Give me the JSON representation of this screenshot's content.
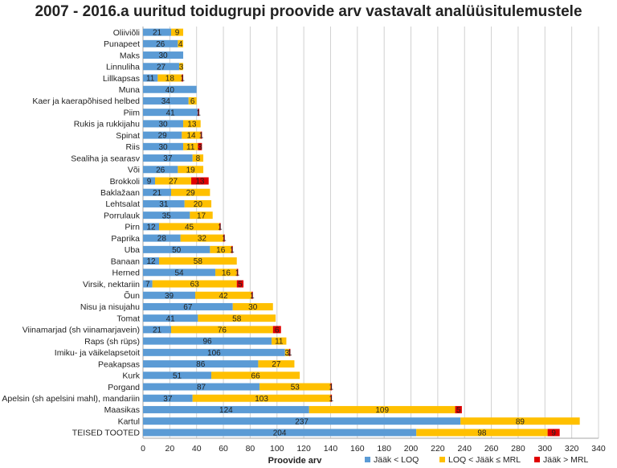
{
  "chart_data": {
    "type": "bar",
    "orientation": "horizontal",
    "stacked": true,
    "title": "2007 - 2016.a uuritud toidugrupi proovide arv vastavalt analüüsitulemustele",
    "xlabel": "Proovide arv",
    "ylabel": "",
    "xlim": [
      0,
      340
    ],
    "xticks": [
      0,
      20,
      40,
      60,
      80,
      100,
      120,
      140,
      160,
      180,
      200,
      220,
      240,
      260,
      280,
      300,
      320,
      340
    ],
    "grid": true,
    "legend_position": "bottom-right",
    "categories": [
      "Oliiviõli",
      "Punapeet",
      "Maks",
      "Linnuliha",
      "Lillkapsas",
      "Muna",
      "Kaer ja kaerapõhised helbed",
      "Piim",
      "Rukis ja rukkijahu",
      "Spinat",
      "Riis",
      "Sealiha ja searasv",
      "Või",
      "Brokkoli",
      "Baklažaan",
      "Lehtsalat",
      "Porrulauk",
      "Pirn",
      "Paprika",
      "Uba",
      "Banaan",
      "Herned",
      "Virsik, nektariin",
      "Õun",
      "Nisu ja nisujahu",
      "Tomat",
      "Viinamarjad (sh viinamarjavein)",
      "Raps (sh rüps)",
      "Imiku- ja väikelapsetoit",
      "Peakapsas",
      "Kurk",
      "Porgand",
      "Apelsin (sh apelsini mahl), mandariin",
      "Maasikas",
      "Kartul",
      "TEISED TOOTED"
    ],
    "series": [
      {
        "name": "Jääk < LOQ",
        "color": "#5b9bd5",
        "values": [
          21,
          26,
          30,
          27,
          11,
          40,
          34,
          41,
          30,
          29,
          30,
          37,
          26,
          9,
          21,
          31,
          35,
          12,
          28,
          50,
          12,
          54,
          7,
          39,
          67,
          41,
          21,
          96,
          106,
          86,
          51,
          87,
          37,
          124,
          237,
          204
        ]
      },
      {
        "name": "LOQ < Jääk ≤ MRL",
        "color": "#ffc000",
        "values": [
          9,
          4,
          0,
          3,
          18,
          0,
          6,
          0,
          13,
          14,
          11,
          8,
          19,
          27,
          29,
          20,
          17,
          45,
          32,
          16,
          58,
          16,
          63,
          42,
          30,
          58,
          76,
          11,
          3,
          27,
          66,
          53,
          103,
          109,
          89,
          98
        ]
      },
      {
        "name": "Jääk > MRL",
        "color": "#e00000",
        "values": [
          0,
          0,
          0,
          0,
          1,
          0,
          0,
          1,
          0,
          1,
          3,
          0,
          0,
          13,
          0,
          0,
          0,
          1,
          1,
          1,
          0,
          1,
          5,
          1,
          0,
          0,
          6,
          0,
          1,
          0,
          0,
          1,
          1,
          5,
          0,
          9
        ]
      }
    ]
  }
}
